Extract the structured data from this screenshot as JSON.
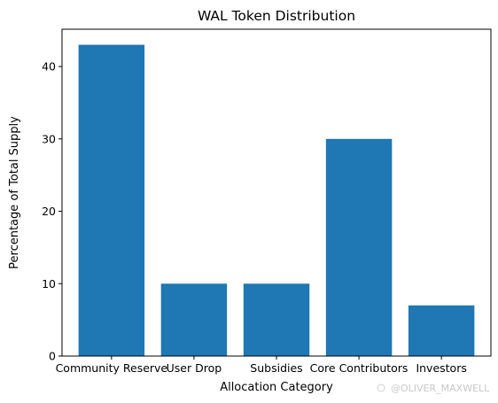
{
  "chart_data": {
    "type": "bar",
    "title": "WAL Token Distribution",
    "xlabel": "Allocation Category",
    "ylabel": "Percentage of Total Supply",
    "categories": [
      "Community Reserve",
      "User Drop",
      "Subsidies",
      "Core Contributors",
      "Investors"
    ],
    "values": [
      43,
      10,
      10,
      30,
      7
    ],
    "ylim": [
      0,
      45.15
    ],
    "yticks": [
      0,
      10,
      20,
      30,
      40
    ],
    "bar_color": "#1f77b4",
    "grid": false,
    "legend": "none"
  },
  "watermark": "@OLIVER_MAXWELL"
}
